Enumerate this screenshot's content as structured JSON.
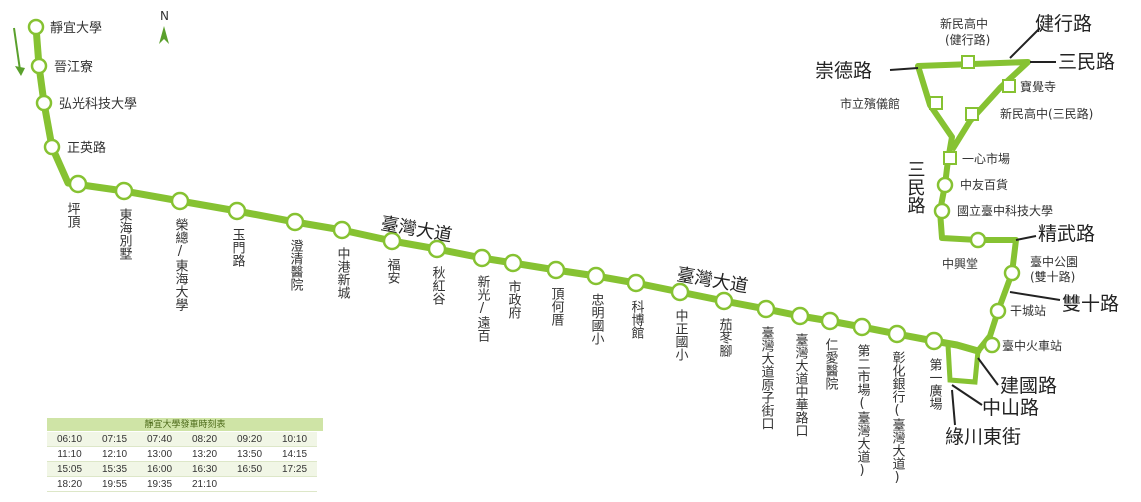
{
  "north_label": "N",
  "road_labels": {
    "taiwan_blvd_1": "臺灣大道",
    "taiwan_blvd_2": "臺灣大道",
    "jianxing": "健行路",
    "sanmin_top": "三民路",
    "chongde": "崇德路",
    "sanmin_vertical": "三民路",
    "jingwu": "精武路",
    "shuangshi": "雙十路",
    "jianguo": "建國路",
    "zhongshan": "中山路",
    "lvchuan": "綠川東街"
  },
  "stops_route": [
    {
      "id": "s1",
      "name": "靜宜大學"
    },
    {
      "id": "s2",
      "name": "晉江寮"
    },
    {
      "id": "s3",
      "name": "弘光科技大學"
    },
    {
      "id": "s4",
      "name": "正英路"
    },
    {
      "id": "s5",
      "name": "坪頂"
    },
    {
      "id": "s6",
      "name": "東海別墅"
    },
    {
      "id": "s7",
      "name": "榮總/東海大學"
    },
    {
      "id": "s8",
      "name": "玉門路"
    },
    {
      "id": "s9",
      "name": "澄清醫院"
    },
    {
      "id": "s10",
      "name": "中港新城"
    },
    {
      "id": "s11",
      "name": "福安"
    },
    {
      "id": "s12",
      "name": "秋紅谷"
    },
    {
      "id": "s13",
      "name": "新光/遠百"
    },
    {
      "id": "s14",
      "name": "市政府"
    },
    {
      "id": "s15",
      "name": "頂何厝"
    },
    {
      "id": "s16",
      "name": "忠明國小"
    },
    {
      "id": "s17",
      "name": "科博館"
    },
    {
      "id": "s18",
      "name": "中正國小"
    },
    {
      "id": "s19",
      "name": "茄苳腳"
    },
    {
      "id": "s20",
      "name": "臺灣大道原子街口"
    },
    {
      "id": "s21",
      "name": "臺灣大道中華路口"
    },
    {
      "id": "s22",
      "name": "仁愛醫院"
    },
    {
      "id": "s23",
      "name": "第二市場(臺灣大道)"
    },
    {
      "id": "s24",
      "name": "彰化銀行(臺灣大道)"
    },
    {
      "id": "s25",
      "name": "第一廣場"
    }
  ],
  "stops_east": {
    "taichung_station": "臺中火車站",
    "ganchengzhan": "干城站",
    "taichung_park": "臺中公園",
    "taichung_park_sub": "(雙十路)",
    "zhongxingtang": "中興堂",
    "ntut": "國立臺中科技大學",
    "zhongyou": "中友百貨",
    "yixin": "一心市場",
    "sanmin_school": "新民高中(三民路)",
    "baojue": "寶覺寺",
    "xinmin_top": "新民高中",
    "xinmin_top_sub": "(健行路)",
    "funeral": "市立殯儀館"
  },
  "timetable": {
    "title": "靜宜大學發車時刻表",
    "rows": [
      [
        "06:10",
        "07:15",
        "07:40",
        "08:20",
        "09:20",
        "10:10"
      ],
      [
        "11:10",
        "12:10",
        "13:00",
        "13:20",
        "13:50",
        "14:15"
      ],
      [
        "15:05",
        "15:35",
        "16:00",
        "16:30",
        "16:50",
        "17:25"
      ],
      [
        "18:20",
        "19:55",
        "19:35",
        "21:10",
        "",
        ""
      ]
    ]
  },
  "colors": {
    "route": "#86c232",
    "stop_fill": "#ffffff",
    "stop_stroke": "#86c232",
    "arrow": "#86c232",
    "header": "#cfe4a6"
  }
}
